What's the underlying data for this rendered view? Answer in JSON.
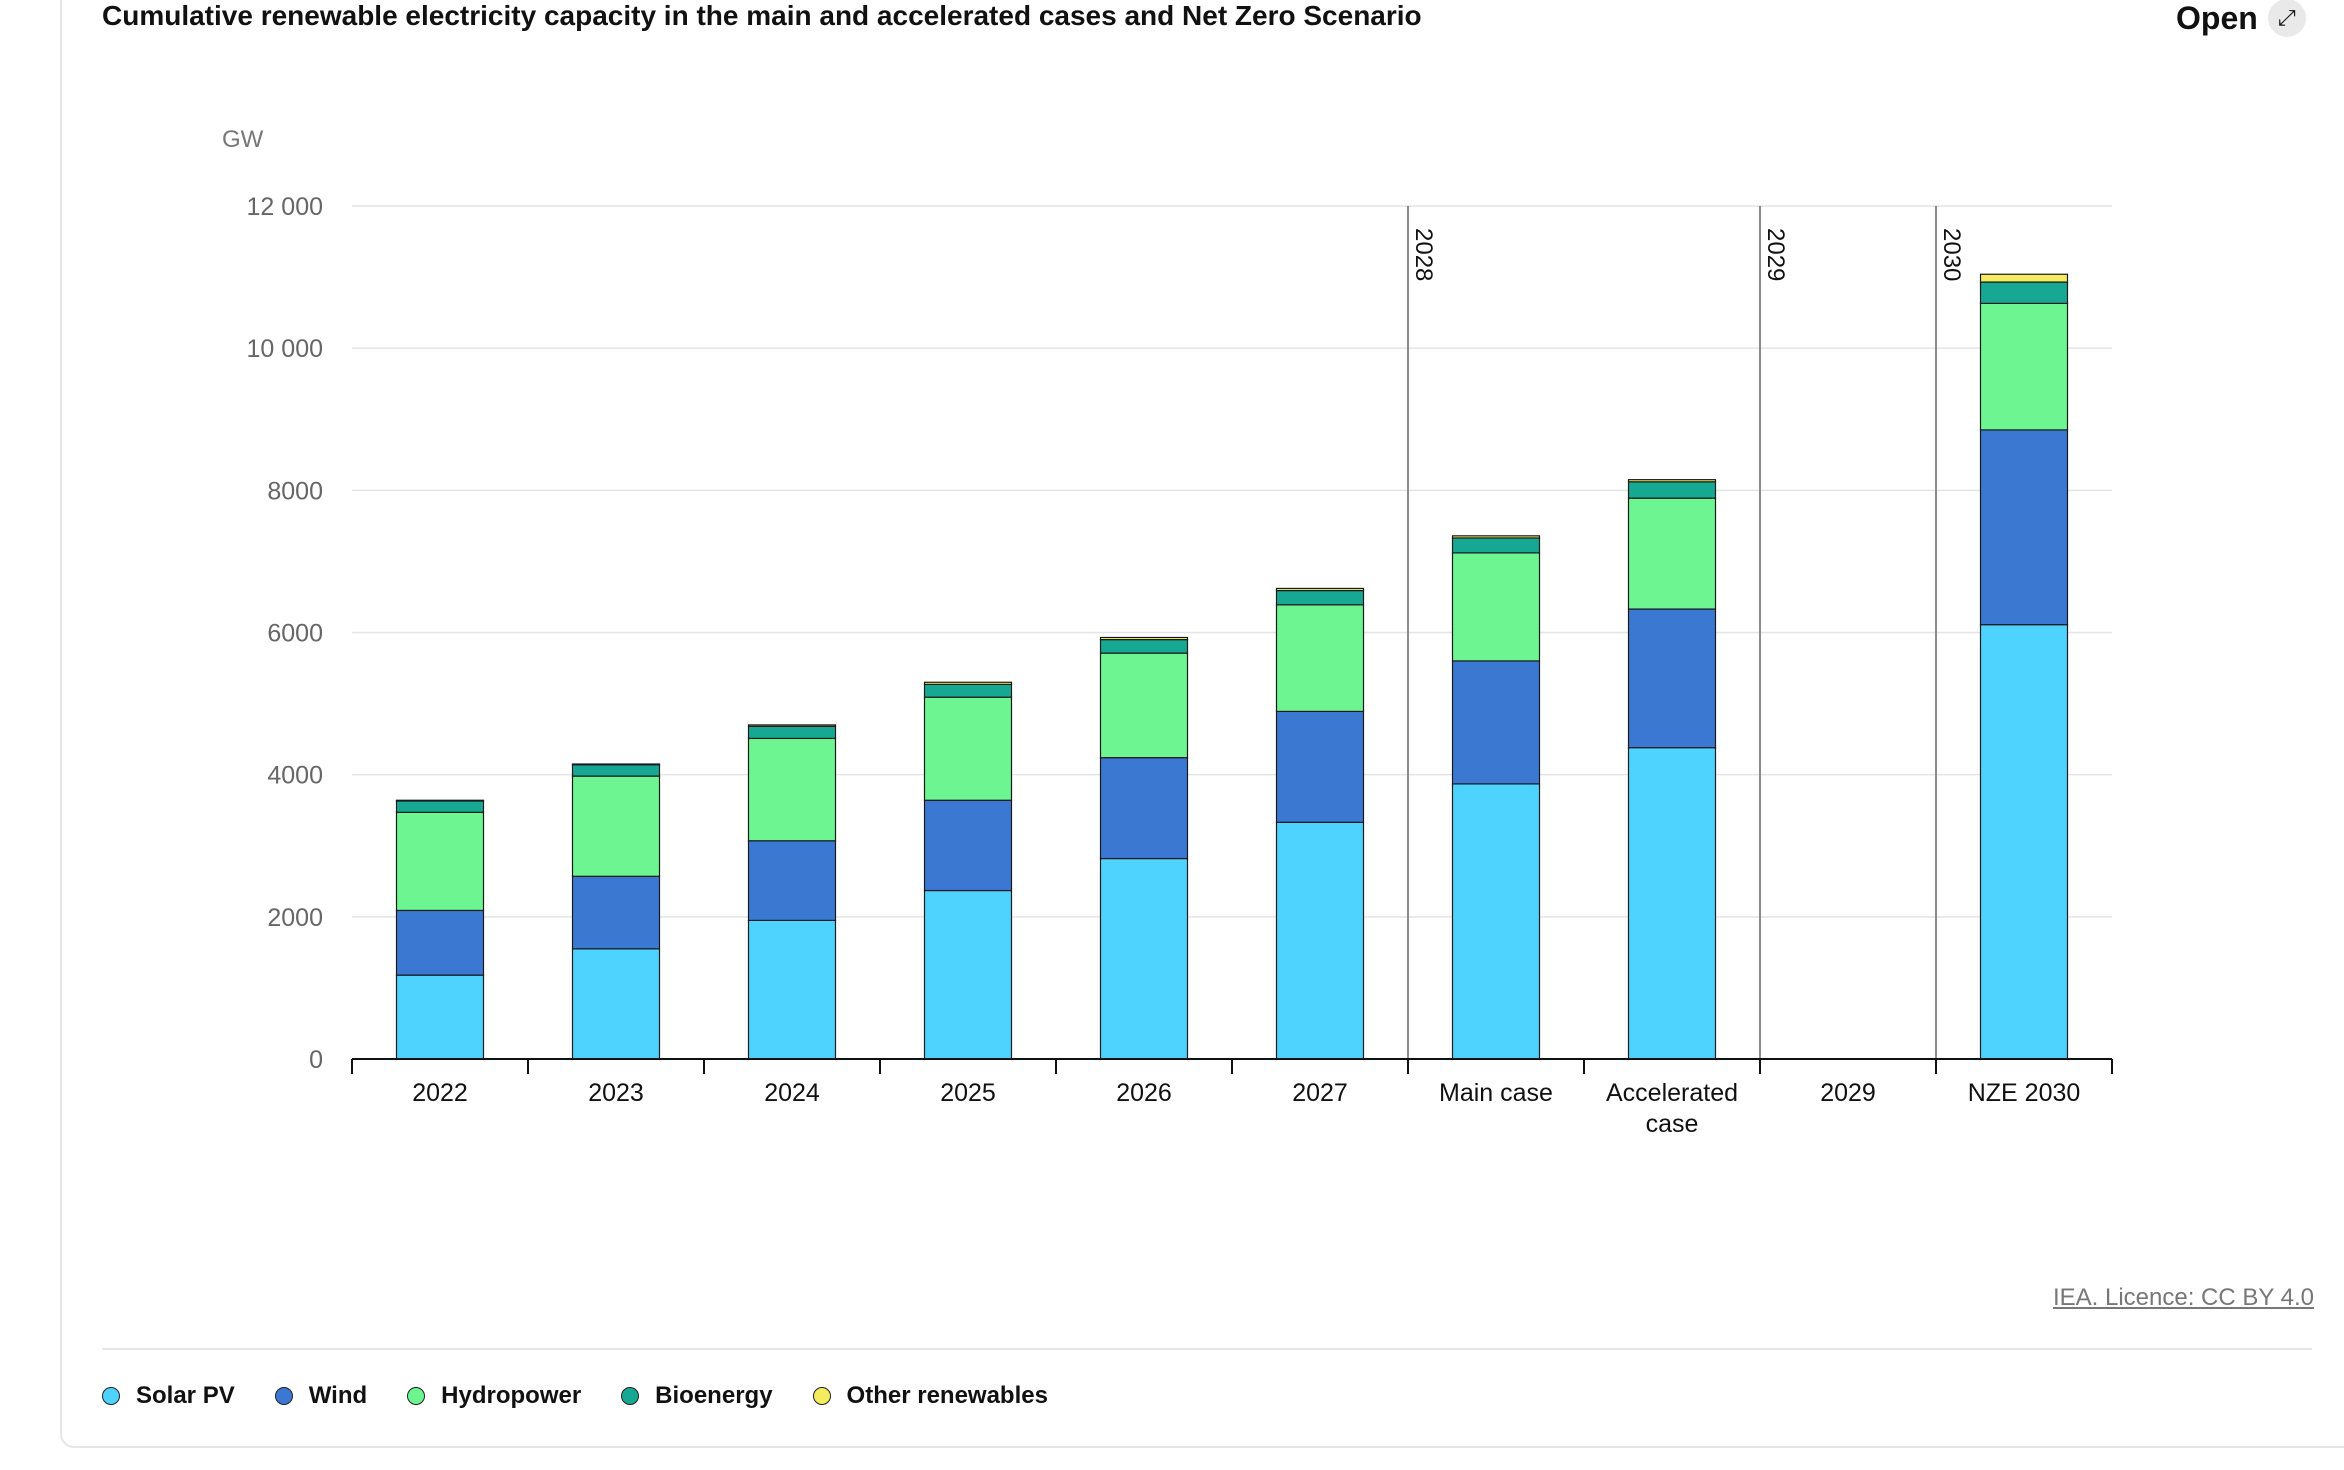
{
  "header": {
    "title": "Cumulative renewable electricity capacity in the main and accelerated cases and Net Zero Scenario",
    "open_label": "Open",
    "open_icon": "expand-arrow-icon"
  },
  "footer": {
    "licence_text": "IEA. Licence: CC BY 4.0"
  },
  "chart_data": {
    "type": "bar",
    "stacked": true,
    "title": "Cumulative renewable electricity capacity in the main and accelerated cases and Net Zero Scenario",
    "ylabel": "GW",
    "xlabel": "",
    "ylim": [
      0,
      12000
    ],
    "yticks": [
      0,
      2000,
      4000,
      6000,
      8000,
      10000,
      12000
    ],
    "ytick_labels": [
      "0",
      "2000",
      "4000",
      "6000",
      "8000",
      "10 000",
      "12 000"
    ],
    "grid": true,
    "legend_position": "bottom",
    "categories": [
      "2022",
      "2023",
      "2024",
      "2025",
      "2026",
      "2027",
      "Main case",
      "Accelerated case",
      "2029",
      "NZE 2030"
    ],
    "category_label_lines": [
      [
        "2022"
      ],
      [
        "2023"
      ],
      [
        "2024"
      ],
      [
        "2025"
      ],
      [
        "2026"
      ],
      [
        "2027"
      ],
      [
        "Main case"
      ],
      [
        "Accelerated",
        "case"
      ],
      [
        "2029"
      ],
      [
        "NZE 2030"
      ]
    ],
    "group_markers": [
      {
        "label": "2028",
        "before_category": 6
      },
      {
        "label": "2029",
        "before_category": 8
      },
      {
        "label": "2030",
        "before_category": 9
      }
    ],
    "series": [
      {
        "name": "Solar PV",
        "color": "#4dd3fd",
        "values": [
          1180,
          1550,
          1950,
          2370,
          2820,
          3330,
          3870,
          4380,
          null,
          6110
        ]
      },
      {
        "name": "Wind",
        "color": "#3b78d1",
        "values": [
          910,
          1020,
          1120,
          1270,
          1420,
          1560,
          1730,
          1950,
          null,
          2740
        ]
      },
      {
        "name": "Hydropower",
        "color": "#6cf590",
        "values": [
          1380,
          1410,
          1440,
          1450,
          1470,
          1500,
          1520,
          1560,
          null,
          1780
        ]
      },
      {
        "name": "Bioenergy",
        "color": "#17a894",
        "values": [
          160,
          160,
          170,
          180,
          190,
          200,
          210,
          230,
          null,
          300
        ]
      },
      {
        "name": "Other renewables",
        "color": "#f3ec5e",
        "values": [
          10,
          10,
          20,
          30,
          30,
          30,
          30,
          30,
          null,
          110
        ]
      }
    ]
  }
}
